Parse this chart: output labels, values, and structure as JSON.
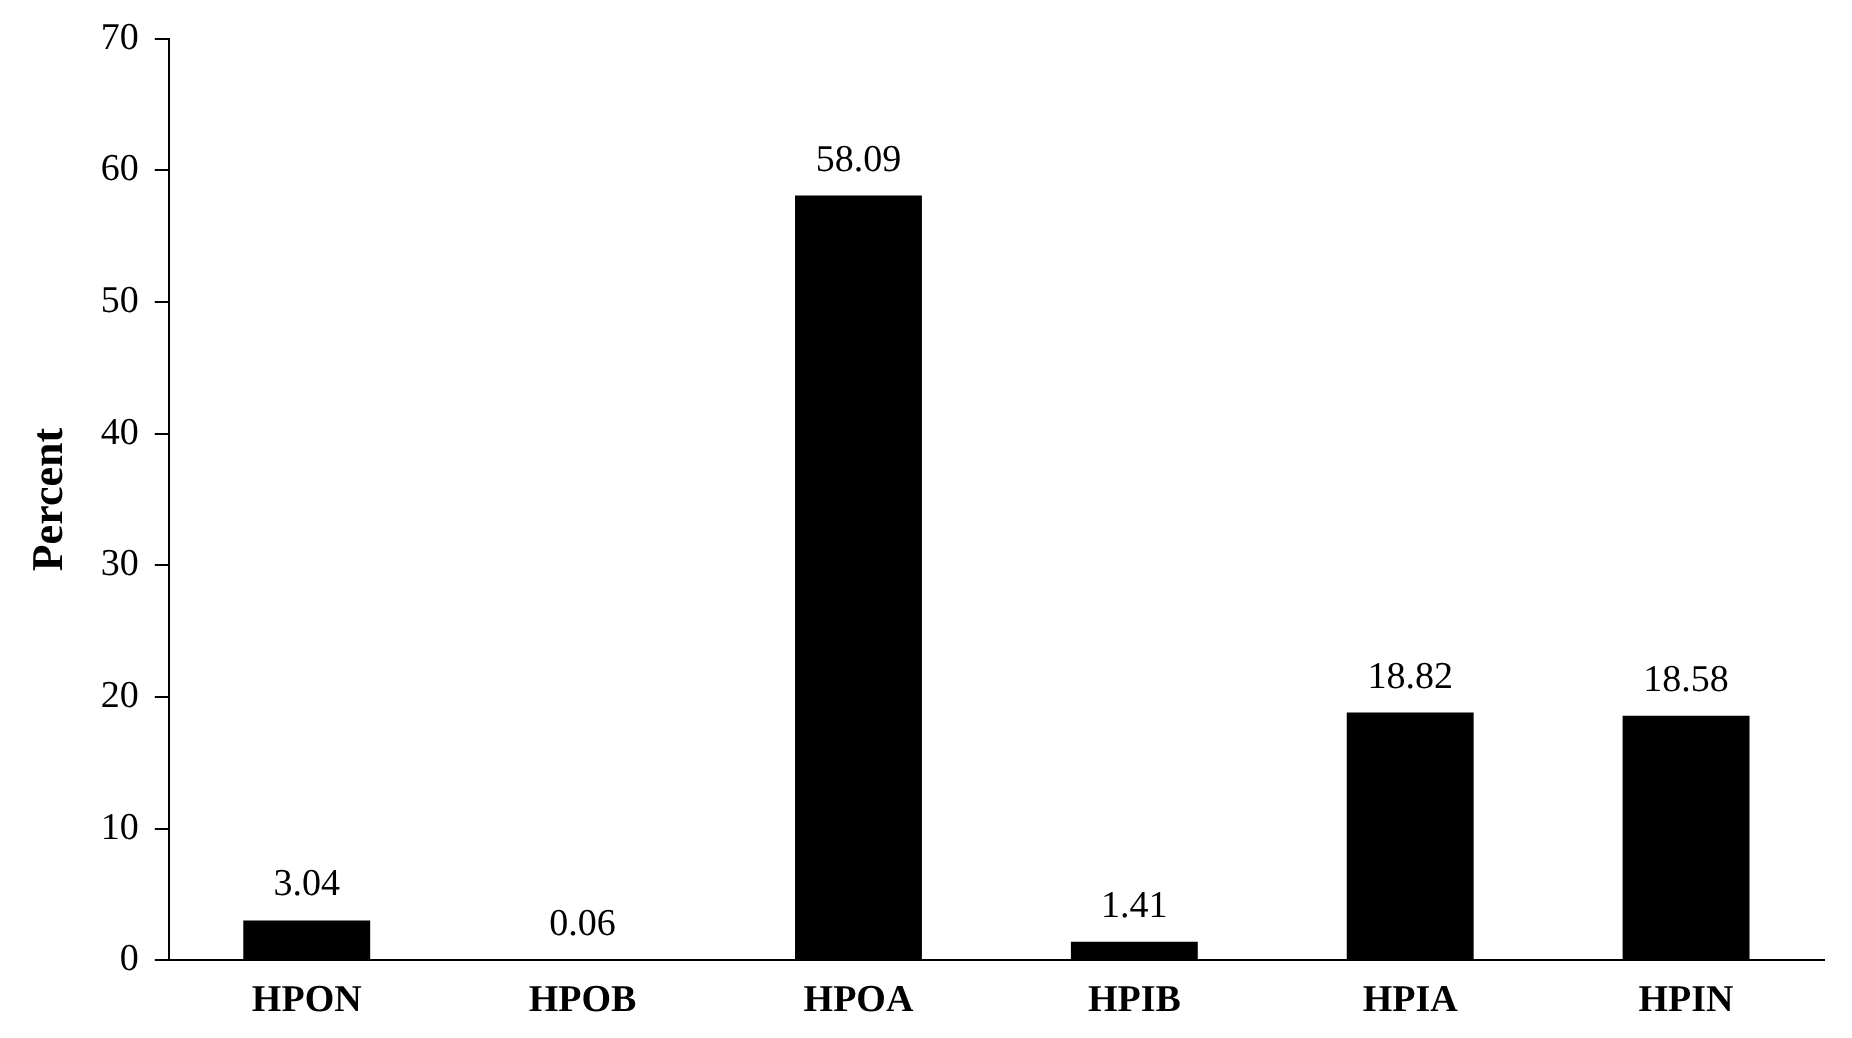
{
  "chart_data": {
    "type": "bar",
    "ylabel": "Percent",
    "categories": [
      "HPON",
      "HPOB",
      "HPOA",
      "HPIB",
      "HPIA",
      "HPIN"
    ],
    "values": [
      3.04,
      0.06,
      58.09,
      1.41,
      18.82,
      18.58
    ],
    "color": "#000000",
    "ylim": [
      0,
      70
    ],
    "yticks": [
      0,
      10,
      20,
      30,
      40,
      50,
      60,
      70
    ],
    "grid": false,
    "legend": false,
    "data_labels": true
  }
}
